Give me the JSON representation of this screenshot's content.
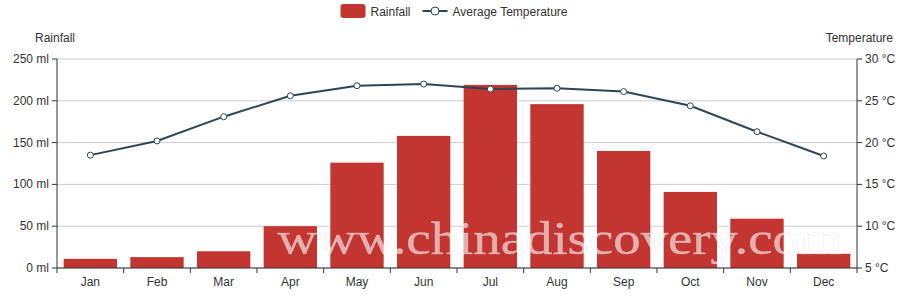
{
  "chart_data": {
    "type": "bar",
    "categories": [
      "Jan",
      "Feb",
      "Mar",
      "Apr",
      "May",
      "Jun",
      "Jul",
      "Aug",
      "Sep",
      "Oct",
      "Nov",
      "Dec"
    ],
    "series": [
      {
        "name": "Rainfall",
        "type": "bar",
        "color": "#c23531",
        "values": [
          11,
          13,
          20,
          50,
          126,
          158,
          219,
          196,
          140,
          91,
          59,
          17
        ]
      },
      {
        "name": "Average Temperature",
        "type": "line",
        "color": "#2f4554",
        "marker": "circle",
        "axis": "y2",
        "values": [
          18.5,
          20.2,
          23.1,
          25.6,
          26.8,
          27.0,
          26.4,
          26.5,
          26.1,
          24.4,
          21.3,
          18.4
        ]
      }
    ],
    "y_label": "Rainfall",
    "y2_label": "Temperature",
    "ylim": [
      0,
      250
    ],
    "yticks": [
      {
        "value": 0,
        "label": "0 ml"
      },
      {
        "value": 50,
        "label": "50 ml"
      },
      {
        "value": 100,
        "label": "100 ml"
      },
      {
        "value": 150,
        "label": "150 ml"
      },
      {
        "value": 200,
        "label": "200 ml"
      },
      {
        "value": 250,
        "label": "250 ml"
      }
    ],
    "y2lim": [
      5,
      30
    ],
    "y2ticks": [
      {
        "value": 5,
        "label": "5 °C"
      },
      {
        "value": 10,
        "label": "10 °C"
      },
      {
        "value": 15,
        "label": "15 °C"
      },
      {
        "value": 20,
        "label": "20 °C"
      },
      {
        "value": 25,
        "label": "25 °C"
      },
      {
        "value": 30,
        "label": "30 °C"
      }
    ],
    "grid": true,
    "legend": "top",
    "annotations": [
      "www.chinadiscovery.com"
    ]
  }
}
